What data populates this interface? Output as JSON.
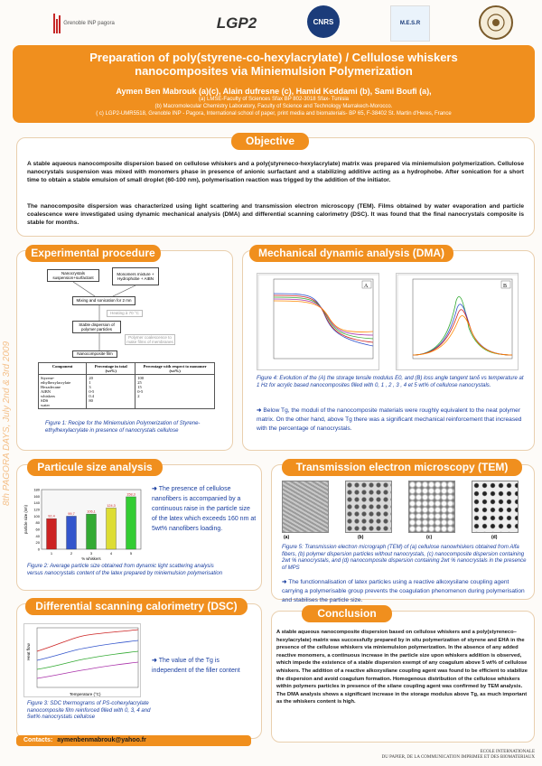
{
  "logos": [
    "Grenoble INP pagora",
    "LGP2",
    "CNRS",
    "M.E.S.R",
    "University seal"
  ],
  "header": {
    "title_line1": "Preparation  of poly(styrene-co-hexylacrylate) / Cellulose whiskers",
    "title_line2": "nanocomposites via Miniemulsion Polymerization",
    "authors": "Aymen Ben Mabrouk (a)(c), Alain dufresne (c), Hamid Keddami (b), Sami Boufi (a),",
    "aff_a": "(a) LMSE-Faculty of Sciences Sfax BP 802-3018 Sfax- Tunisia",
    "aff_b": "(b) Macromolecular Chemistry Laboratory, Faculty of Science and Technology Marrakech-Morocco.",
    "aff_c": "( c) LGP2-UMR5518, Grenoble INP - Pagora, International school of paper, print media and biomaterials- BP 65, F-38402 St. Martin d'Heres, France"
  },
  "sidebar_text": "8th PAGORA DAYS, July 2nd & 3rd 2009",
  "objective": {
    "title": "Objective",
    "p1": "A stable aqueous nanocomposite dispersion based on cellulose whiskers and a poly(styreneco-hexylacrylate) matrix was prepared via miniemulsion polymerization. Cellulose nanocrystals suspension was mixed with monomers phase in presence of anionic surfactant and a stabilizing additive acting as a hydrophobe. After sonication for a short time to obtain a stable emulsion of small droplet (60-100 nm), polymerisation reaction was trigged by the addition of the initiator.",
    "p2": "The nanocomposite dispersion was characterized using light scattering and transmission electron microscopy (TEM). Films obtained by water evaporation and particle coalescence were investigated using dynamic mechanical analysis (DMA) and differential scanning calorimetry (DSC). It was found that the final nanocrystals composite is stable for months."
  },
  "experimental": {
    "title": "Experimental procedure",
    "box1": "Nanocrystals suspension+surfactant",
    "box2": "Monomers mixture + Hydrophobe + AIBN",
    "box3": "Mixing and sonication for 2 mn",
    "box4": "Heating à 70 °C",
    "box5": "Stable dispersion of polymer particles",
    "box6": "Polymer coalescence to make films of membranes",
    "box7": "Nanocomposite film",
    "table_headers": [
      "Component",
      "Percentage in total (wt%)",
      "Percentage with respect to monomer (wt%)"
    ],
    "table_rows": [
      [
        "Styrene-ethylhexylacrylate",
        "20",
        "100"
      ],
      [
        "Hexadecane",
        "1",
        "25"
      ],
      [
        "AIBN",
        "3",
        "15"
      ],
      [
        "whiskers",
        "0-5",
        "0-5"
      ],
      [
        "SDS",
        "0.4",
        "2"
      ],
      [
        "water",
        "80",
        ""
      ]
    ],
    "caption": "Figure 1: Recipe for the Miniemulsion Polymerization of Styrene-ethylhexylacrylate in presence of nanocrystals cellulose"
  },
  "dma": {
    "title": "Mechanical dynamic analysis (DMA)",
    "panel_a_label": "A",
    "panel_b_label": "B",
    "caption": "Figure 4: Evolution of the (A) the storage tensile modulus E0, and (B) loss angle tangent tanδ vs temperature at 1 Hz for acrylic based nanocomposites filled with 0, 1 , 2 , 3 , 4 et 5 wt% of cellulose nanocrystals.",
    "note": "Below Tg, the moduli of the nanocomposite materials were roughly equivalent to the neat polymer matrix. On the other hand, above Tg there was a significant mechanical reinforcement that increased with the percentage of nanocrystals."
  },
  "particle": {
    "title": "Particule size analysis",
    "note": "The presence of cellulose nanofibers is accompanied by a continuous raise in the particle size of the latex which exceeds 160 nm at 5wt% nanofibers loading.",
    "caption": "Figure 2: Average particle size obtained from dynamic light scattering analysis versus nanocrystals content of the latex prepared by miniemulsion polymerisation"
  },
  "chart_data": {
    "type": "bar",
    "categories": [
      "1",
      "2",
      "3",
      "4",
      "5"
    ],
    "values": [
      92.4,
      99.7,
      106.1,
      124.3,
      158.3
    ],
    "value_labels": [
      "92,4",
      "99,7",
      "106,1",
      "124,3",
      "158,3"
    ],
    "ylabel": "particle size (nm)",
    "xlabel": "% whiskers",
    "ylim": [
      0,
      180
    ],
    "yticks": [
      "0",
      "20",
      "40",
      "60",
      "80",
      "100",
      "120",
      "140",
      "160",
      "180"
    ],
    "colors": [
      "#cc2222",
      "#3355cc",
      "#33aa33",
      "#dddd33",
      "#33cc33"
    ]
  },
  "tem": {
    "title": "Transmission electron microscopy (TEM)",
    "labels": [
      "(a)",
      "(b)",
      "(c)",
      "(d)"
    ],
    "caption": "Figure 5: Transmission electron micrograph (TEM) of (a) cellulose nanowhiskers obtained from Alfa fibers, (b) polymer dispersion particles without nanocrystals, (c) nanocomposite dispersion containing 2wt % nanocrystals, and (d) nanocomposite dispersion containing 2wt % nanocrystals in the presence of MPS",
    "note": "The functionnalisation of latex particles using a reactive alkoxysilane coupling agent carrying a polymerisable group prevents the coagulation phenomenon during polymerisation and stabilises the particle size."
  },
  "dsc": {
    "title": "Differential scanning calorimetry (DSC)",
    "note": "The value of the Tg is independent of the filler content",
    "caption": "Figure 3: SDC thermograms of PS-cohexylacrylate nanocomposite film reinforced filled with 0, 3, 4 and 5wt% nanocrystals cellulose",
    "xlabel": "Temperature (°C)",
    "ylabel": "Heat flow"
  },
  "conclusion": {
    "title": "Conclusion",
    "text": "A stable aqueous nanocomposite dispersion based on cellulose whiskers and a poly(styreneco–hexylacrylate) matrix was successfully prepared by in situ polymerization of styrene and EHA in the presence of the cellulose whiskers via miniemulsion polymerization. In the absence of any added reactive monomers, a continuous increase in the particle size upon whiskers addition is observed, which impede the existence of a stable dispersion exempt of any coagulum above 5 wt% of cellulose whiskers. The addition of a reactive alkoxysilane coupling agent  was found to be efficient to stabilize the dispersion and avoid coagulum formation. Homogenous distribution of the cellulose whiskers within polymers particles in presence of the silane coupling agent was confirmed by TEM analysis. The DMA analysis shows a significant increase in the storage modulus above Tg, as much important as the whiskers content is high."
  },
  "footer": {
    "contact_label": "Contacts:",
    "contact_email": "aymenbenmabrouk@yahoo.fr",
    "school_line1": "ECOLE  INTERNATIONALE",
    "school_line2": "DU PAPIER, DE LA COMMUNICATION IMPRIMEE ET DES BIOMATERIAUX"
  }
}
